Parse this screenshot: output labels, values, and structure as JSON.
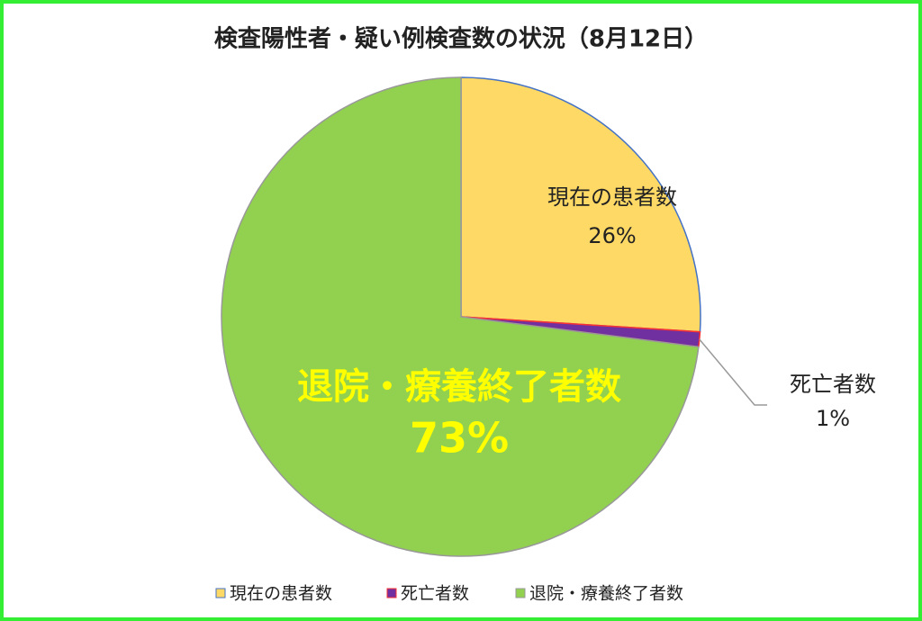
{
  "chart_data": {
    "type": "pie",
    "title": "検査陽性者・疑い例検査数の状況（8月12日）",
    "categories": [
      "現在の患者数",
      "死亡者数",
      "退院・療養終了者数"
    ],
    "values": [
      26,
      1,
      73
    ],
    "value_labels": [
      "26%",
      "1%",
      "73%"
    ],
    "colors": [
      "#ffd966",
      "#7030a0",
      "#92d050"
    ],
    "legend": "bottom"
  }
}
